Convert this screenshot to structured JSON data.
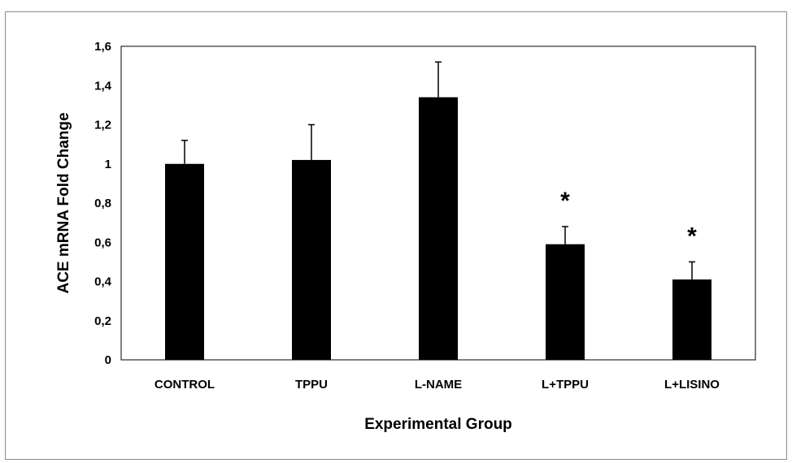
{
  "chart_data": {
    "type": "bar",
    "categories": [
      "CONTROL",
      "TPPU",
      "L-NAME",
      "L+TPPU",
      "L+LISINO"
    ],
    "series": [
      {
        "values": [
          1.0,
          1.02,
          1.34,
          0.59,
          0.41
        ],
        "error_plus": [
          0.12,
          0.18,
          0.18,
          0.09,
          0.09
        ],
        "color": "#000000"
      }
    ],
    "annotations": [
      "",
      "",
      "",
      "*",
      "*"
    ],
    "xlabel": "Experimental Group",
    "ylabel": "ACE mRNA Fold Change",
    "ylim": [
      0,
      1.6
    ],
    "yticks": [
      0,
      0.2,
      0.4,
      0.6,
      0.8,
      1.0,
      1.2,
      1.4,
      1.6
    ],
    "ytick_labels": [
      "0",
      "0,2",
      "0,4",
      "0,6",
      "0,8",
      "1",
      "1,2",
      "1,4",
      "1,6"
    ],
    "grid": false,
    "legend": "none"
  }
}
